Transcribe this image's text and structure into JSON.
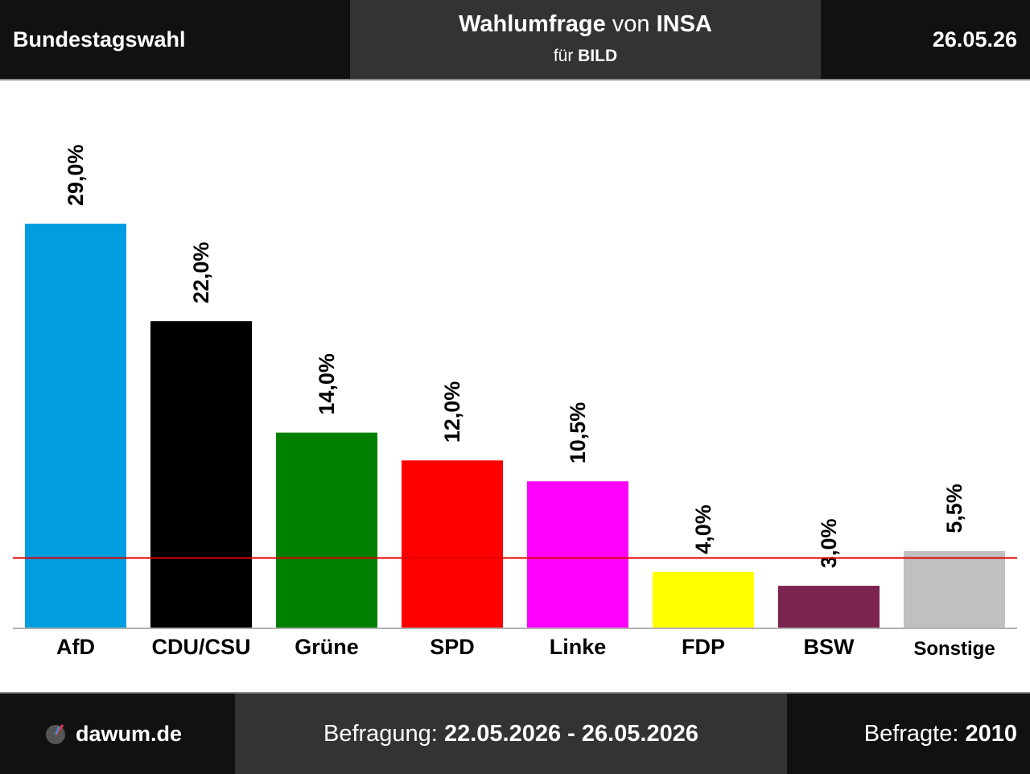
{
  "header": {
    "title": "Bundestagswahl",
    "poll_word": "Wahlumfrage",
    "von_word": "von",
    "institute": "INSA",
    "fuer_word": "für",
    "client": "BILD",
    "date": "26.05.26"
  },
  "footer": {
    "site": "dawum.de",
    "survey_label": "Befragung:",
    "survey_period": "22.05.2026 - 26.05.2026",
    "respondents_label": "Befragte:",
    "respondents": "2010"
  },
  "chart_data": {
    "type": "bar",
    "categories": [
      "AfD",
      "CDU/CSU",
      "Grüne",
      "SPD",
      "Linke",
      "FDP",
      "BSW",
      "Sonstige"
    ],
    "values": [
      29.0,
      22.0,
      14.0,
      12.0,
      10.5,
      4.0,
      3.0,
      5.5
    ],
    "value_labels": [
      "29,0%",
      "22,0%",
      "14,0%",
      "12,0%",
      "10,5%",
      "4,0%",
      "3,0%",
      "5,5%"
    ],
    "colors": [
      "#009ee0",
      "#000000",
      "#008000",
      "#ff0000",
      "#ff00ff",
      "#ffff00",
      "#7b2450",
      "#c0c0c0"
    ],
    "threshold": 5,
    "threshold_color": "#e00000",
    "ylim": [
      0,
      29
    ],
    "grid": false
  }
}
